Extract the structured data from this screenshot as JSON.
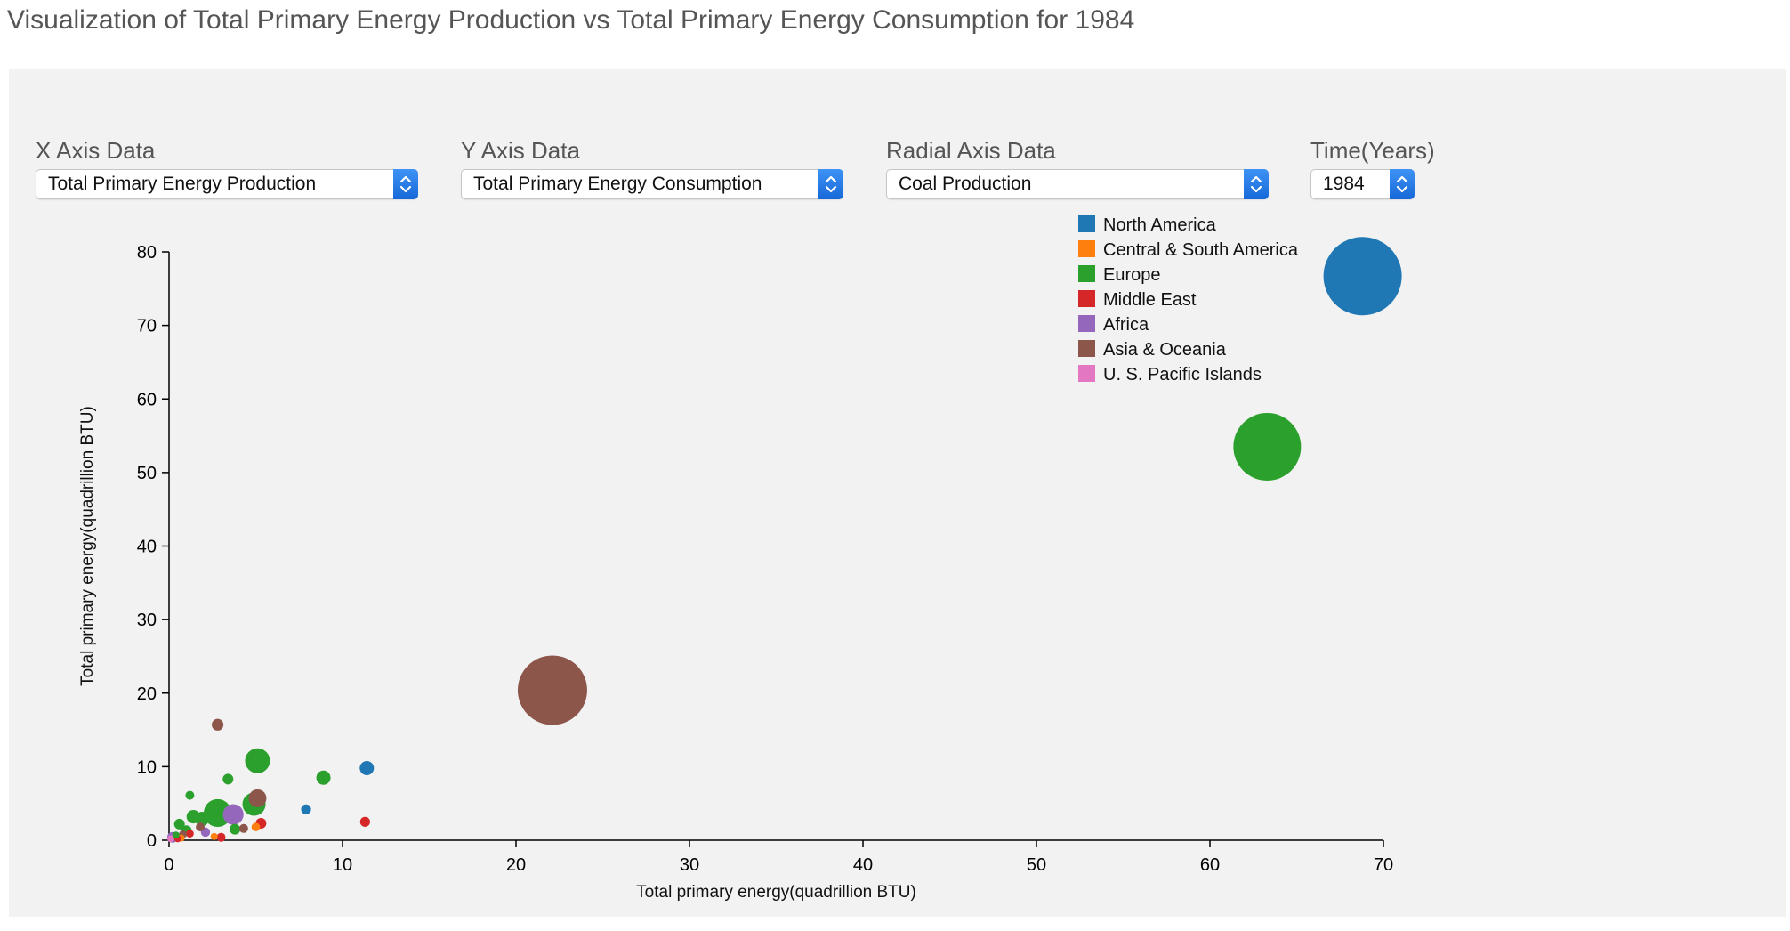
{
  "page": {
    "title": "Visualization of Total Primary Energy Production vs Total Primary Energy Consumption for 1984"
  },
  "controls": {
    "x_axis": {
      "label": "X Axis Data",
      "value": "Total Primary Energy Production"
    },
    "y_axis": {
      "label": "Y Axis Data",
      "value": "Total Primary Energy Consumption"
    },
    "radial_axis": {
      "label": "Radial Axis Data",
      "value": "Coal Production"
    },
    "time": {
      "label": "Time(Years)",
      "value": "1984"
    }
  },
  "colors": {
    "panel_bg": "#f2f2f2",
    "North America": "#1f77b4",
    "Central & South America": "#ff7f0e",
    "Europe": "#2ca02c",
    "Middle East": "#d62728",
    "Africa": "#9467bd",
    "Asia & Oceania": "#8c564b",
    "U. S. Pacific Islands": "#e377c2"
  },
  "chart_data": {
    "type": "scatter",
    "subtype": "bubble",
    "xlabel": "Total primary energy(quadrillion BTU)",
    "ylabel": "Total primary energy(quadrillion BTU)",
    "xlim": [
      0,
      70
    ],
    "ylim": [
      0,
      80
    ],
    "xticks": [
      0,
      10,
      20,
      30,
      40,
      50,
      60,
      70
    ],
    "yticks": [
      0,
      10,
      20,
      30,
      40,
      50,
      60,
      70,
      80
    ],
    "grid": false,
    "legend_position": "top-right",
    "legend": [
      "North America",
      "Central & South America",
      "Europe",
      "Middle East",
      "Africa",
      "Asia & Oceania",
      "U. S. Pacific Islands"
    ],
    "points": [
      {
        "region": "North America",
        "x": 68.8,
        "y": 76.7,
        "r": 22.0
      },
      {
        "region": "Europe",
        "x": 63.3,
        "y": 53.5,
        "r": 19.0
      },
      {
        "region": "Asia & Oceania",
        "x": 22.1,
        "y": 20.4,
        "r": 19.5
      },
      {
        "region": "Asia & Oceania",
        "x": 2.8,
        "y": 15.7,
        "r": 3.3
      },
      {
        "region": "North America",
        "x": 11.4,
        "y": 9.8,
        "r": 4.0
      },
      {
        "region": "Europe",
        "x": 5.1,
        "y": 10.8,
        "r": 7.0
      },
      {
        "region": "Europe",
        "x": 8.9,
        "y": 8.5,
        "r": 4.0
      },
      {
        "region": "Europe",
        "x": 3.4,
        "y": 8.3,
        "r": 3.0
      },
      {
        "region": "Europe",
        "x": 1.2,
        "y": 6.1,
        "r": 2.5
      },
      {
        "region": "Asia & Oceania",
        "x": 5.1,
        "y": 5.7,
        "r": 5.0
      },
      {
        "region": "Europe",
        "x": 4.9,
        "y": 4.9,
        "r": 6.5
      },
      {
        "region": "North America",
        "x": 7.9,
        "y": 4.2,
        "r": 2.8
      },
      {
        "region": "Europe",
        "x": 2.8,
        "y": 3.7,
        "r": 7.8
      },
      {
        "region": "Africa",
        "x": 3.7,
        "y": 3.5,
        "r": 5.8
      },
      {
        "region": "Europe",
        "x": 1.4,
        "y": 3.2,
        "r": 3.8
      },
      {
        "region": "Europe",
        "x": 1.9,
        "y": 2.9,
        "r": 4.0
      },
      {
        "region": "Middle East",
        "x": 11.3,
        "y": 2.5,
        "r": 2.8
      },
      {
        "region": "Europe",
        "x": 0.6,
        "y": 2.2,
        "r": 3.0
      },
      {
        "region": "Middle East",
        "x": 5.3,
        "y": 2.3,
        "r": 3.0
      },
      {
        "region": "Central & South America",
        "x": 5.0,
        "y": 1.8,
        "r": 2.4
      },
      {
        "region": "Asia & Oceania",
        "x": 4.3,
        "y": 1.6,
        "r": 2.5
      },
      {
        "region": "Europe",
        "x": 3.8,
        "y": 1.5,
        "r": 3.0
      },
      {
        "region": "Asia & Oceania",
        "x": 1.8,
        "y": 1.8,
        "r": 2.5
      },
      {
        "region": "Europe",
        "x": 1.0,
        "y": 1.3,
        "r": 3.0
      },
      {
        "region": "Africa",
        "x": 2.1,
        "y": 1.1,
        "r": 2.6
      },
      {
        "region": "Middle East",
        "x": 1.2,
        "y": 0.9,
        "r": 2.2
      },
      {
        "region": "Asia & Oceania",
        "x": 0.8,
        "y": 0.8,
        "r": 2.2
      },
      {
        "region": "Middle East",
        "x": 3.0,
        "y": 0.4,
        "r": 2.5
      },
      {
        "region": "Central & South America",
        "x": 2.6,
        "y": 0.5,
        "r": 2.0
      },
      {
        "region": "Africa",
        "x": 0.2,
        "y": 0.4,
        "r": 3.0
      },
      {
        "region": "U. S. Pacific Islands",
        "x": 0.1,
        "y": 0.2,
        "r": 2.0
      },
      {
        "region": "Central & South America",
        "x": 0.7,
        "y": 0.3,
        "r": 2.0
      },
      {
        "region": "Middle East",
        "x": 0.5,
        "y": 0.2,
        "r": 2.0
      },
      {
        "region": "Europe",
        "x": 0.4,
        "y": 0.7,
        "r": 2.0
      }
    ]
  }
}
